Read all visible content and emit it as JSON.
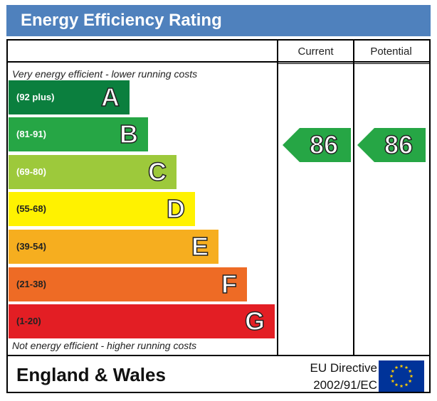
{
  "header": {
    "title": "Energy Efficiency Rating",
    "background": "#4f81bd"
  },
  "columns": {
    "current": "Current",
    "potential": "Potential"
  },
  "notes": {
    "top": "Very energy efficient - lower running costs",
    "bottom": "Not energy efficient - higher running costs"
  },
  "bands": [
    {
      "range": "(92 plus)",
      "letter": "A",
      "color": "#0b7f3e",
      "dark_text": false
    },
    {
      "range": "(81-91)",
      "letter": "B",
      "color": "#26a645",
      "dark_text": false
    },
    {
      "range": "(69-80)",
      "letter": "C",
      "color": "#9dc93b",
      "dark_text": false
    },
    {
      "range": "(55-68)",
      "letter": "D",
      "color": "#fff200",
      "dark_text": true
    },
    {
      "range": "(39-54)",
      "letter": "E",
      "color": "#f6ae1f",
      "dark_text": true
    },
    {
      "range": "(21-38)",
      "letter": "F",
      "color": "#ee6b25",
      "dark_text": true
    },
    {
      "range": "(1-20)",
      "letter": "G",
      "color": "#e31e24",
      "dark_text": true
    }
  ],
  "ratings": {
    "current": {
      "value": "86",
      "band": "B",
      "color": "#26a645"
    },
    "potential": {
      "value": "86",
      "band": "B",
      "color": "#26a645"
    }
  },
  "footer": {
    "region": "England & Wales",
    "directive_line1": "EU Directive",
    "directive_line2": "2002/91/EC",
    "flag_blue": "#003399",
    "flag_star": "#ffcc00"
  },
  "chart_data": {
    "type": "bar",
    "title": "Energy Efficiency Rating",
    "categories": [
      "A",
      "B",
      "C",
      "D",
      "E",
      "F",
      "G"
    ],
    "ranges": [
      "(92 plus)",
      "(81-91)",
      "(69-80)",
      "(55-68)",
      "(39-54)",
      "(21-38)",
      "(1-20)"
    ],
    "series": [
      {
        "name": "Current",
        "values": [
          null,
          86,
          null,
          null,
          null,
          null,
          null
        ]
      },
      {
        "name": "Potential",
        "values": [
          null,
          86,
          null,
          null,
          null,
          null,
          null
        ]
      }
    ]
  }
}
